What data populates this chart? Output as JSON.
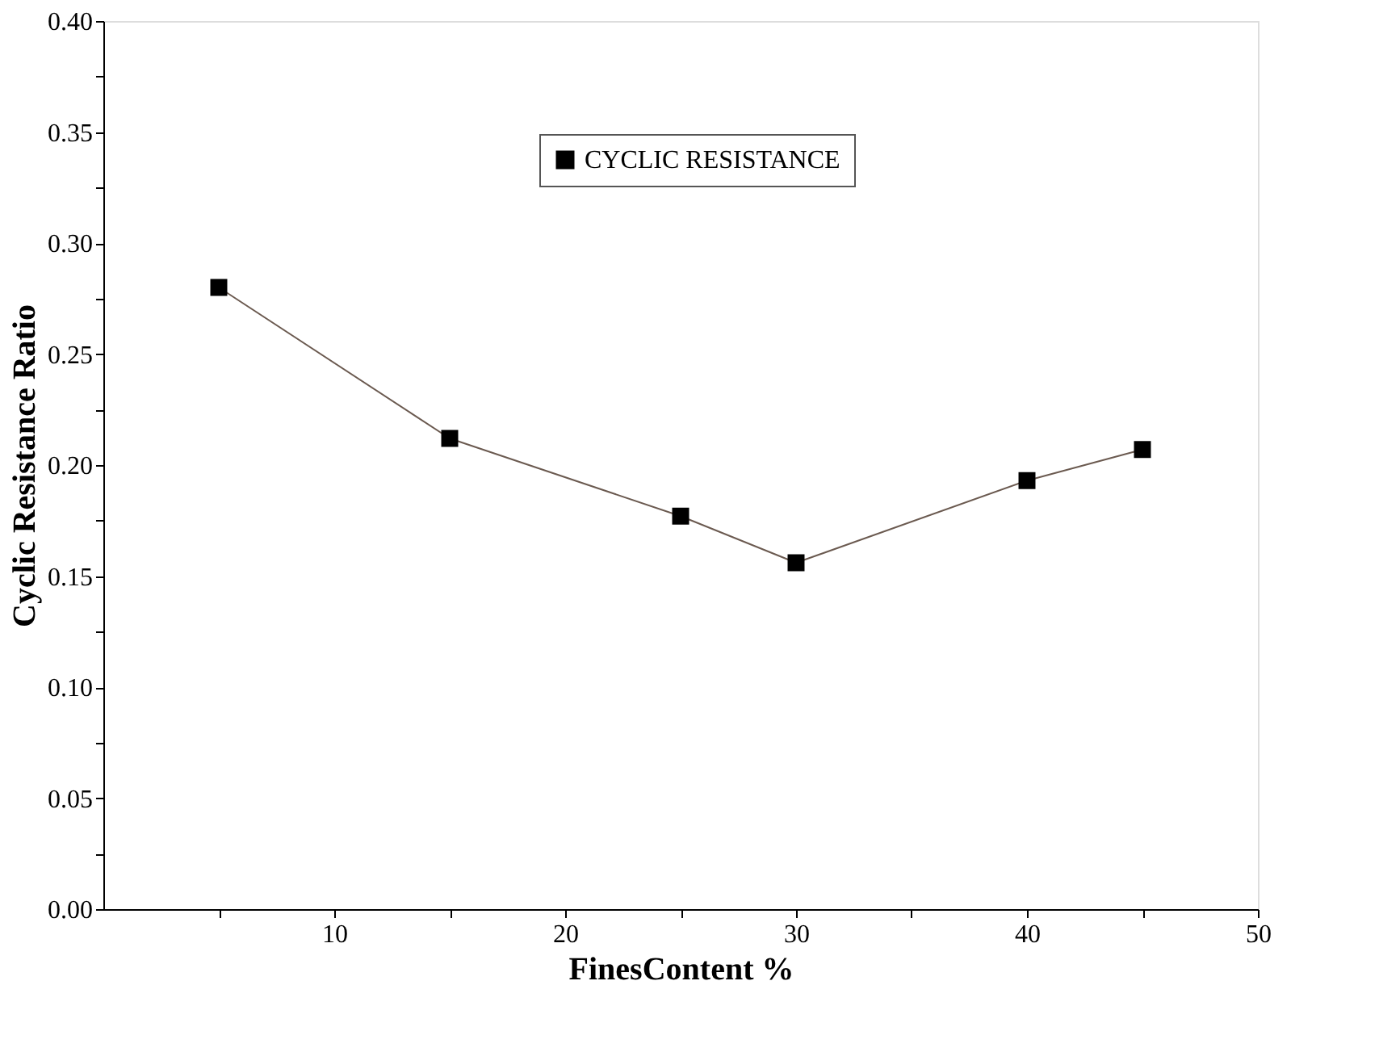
{
  "chart_data": {
    "type": "line",
    "xlabel": "FinesContent %",
    "ylabel": "Cyclic Resistance Ratio",
    "x": [
      5,
      15,
      25,
      30,
      40,
      45
    ],
    "series": [
      {
        "name": "CYCLIC RESISTANCE",
        "color": "#000000",
        "values": [
          0.28,
          0.212,
          0.177,
          0.156,
          0.193,
          0.207
        ]
      }
    ],
    "xlim": [
      0,
      50
    ],
    "xticks": [
      {
        "value": 5,
        "label": null
      },
      10,
      {
        "value": 15,
        "label": null
      },
      20,
      {
        "value": 25,
        "label": null
      },
      30,
      {
        "value": 35,
        "label": null
      },
      40,
      {
        "value": 45,
        "label": null
      },
      50
    ],
    "ylim": [
      0,
      0.4
    ],
    "yticks": [
      {
        "value": 0,
        "label": "0.00"
      },
      {
        "value": 0.025,
        "label": null
      },
      {
        "value": 0.05,
        "label": "0.05"
      },
      {
        "value": 0.075,
        "label": null
      },
      {
        "value": 0.1,
        "label": "0.10"
      },
      {
        "value": 0.125,
        "label": null
      },
      {
        "value": 0.15,
        "label": "0.15"
      },
      {
        "value": 0.175,
        "label": null
      },
      {
        "value": 0.2,
        "label": "0.20"
      },
      {
        "value": 0.225,
        "label": null
      },
      {
        "value": 0.25,
        "label": "0.25"
      },
      {
        "value": 0.275,
        "label": null
      },
      {
        "value": 0.3,
        "label": "0.30"
      },
      {
        "value": 0.325,
        "label": null
      },
      {
        "value": 0.35,
        "label": "0.35"
      },
      {
        "value": 0.375,
        "label": null
      },
      {
        "value": 0.4,
        "label": "0.40"
      }
    ],
    "marker": "square",
    "line_style": "solid",
    "legend": "top right",
    "grid": false
  }
}
